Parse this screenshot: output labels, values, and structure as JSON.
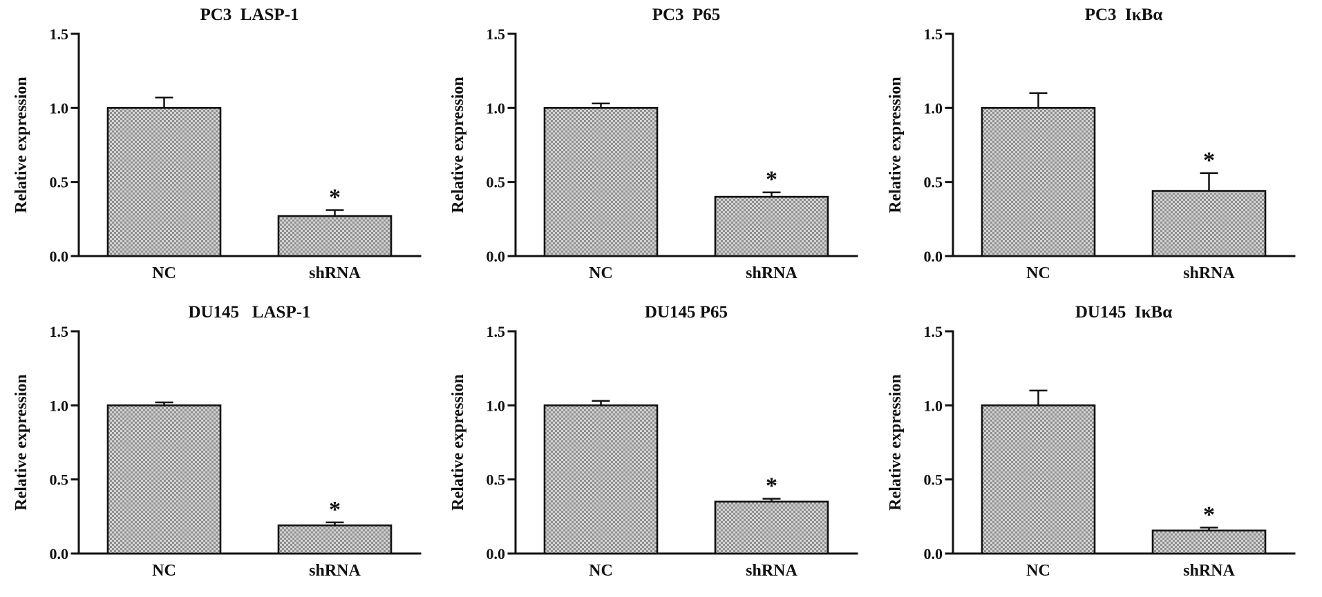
{
  "page": {
    "background": "#ffffff"
  },
  "colors": {
    "stroke": "#111111",
    "bar_fill_light": "#d4d4d4",
    "bar_fill_dark": "#8f8f8f"
  },
  "chart_data": [
    {
      "id": "pc3-lasp1",
      "type": "bar",
      "title": "PC3  LASP-1",
      "ylabel": "Relative expression",
      "xlabel": "",
      "categories": [
        "NC",
        "shRNA"
      ],
      "values": [
        1.0,
        0.27
      ],
      "errors": [
        0.07,
        0.04
      ],
      "significance": [
        "",
        "*"
      ],
      "ylim": [
        0,
        1.5
      ],
      "yticks": [
        "0.0",
        "0.5",
        "1.0",
        "1.5"
      ],
      "grid": false,
      "legend": "none"
    },
    {
      "id": "pc3-p65",
      "type": "bar",
      "title": "PC3  P65",
      "ylabel": "Relative expression",
      "xlabel": "",
      "categories": [
        "NC",
        "shRNA"
      ],
      "values": [
        1.0,
        0.4
      ],
      "errors": [
        0.03,
        0.03
      ],
      "significance": [
        "",
        "*"
      ],
      "ylim": [
        0,
        1.5
      ],
      "yticks": [
        "0.0",
        "0.5",
        "1.0",
        "1.5"
      ],
      "grid": false,
      "legend": "none"
    },
    {
      "id": "pc3-ikba",
      "type": "bar",
      "title": "PC3  IκBα",
      "ylabel": "Relative expression",
      "xlabel": "",
      "categories": [
        "NC",
        "shRNA"
      ],
      "values": [
        1.0,
        0.44
      ],
      "errors": [
        0.1,
        0.12
      ],
      "significance": [
        "",
        "*"
      ],
      "ylim": [
        0,
        1.5
      ],
      "yticks": [
        "0.0",
        "0.5",
        "1.0",
        "1.5"
      ],
      "grid": false,
      "legend": "none"
    },
    {
      "id": "du145-lasp1",
      "type": "bar",
      "title": "DU145   LASP-1",
      "ylabel": "Relative expression",
      "xlabel": "",
      "categories": [
        "NC",
        "shRNA"
      ],
      "values": [
        1.0,
        0.19
      ],
      "errors": [
        0.02,
        0.02
      ],
      "significance": [
        "",
        "*"
      ],
      "ylim": [
        0,
        1.5
      ],
      "yticks": [
        "0.0",
        "0.5",
        "1.0",
        "1.5"
      ],
      "grid": false,
      "legend": "none"
    },
    {
      "id": "du145-p65",
      "type": "bar",
      "title": "DU145 P65",
      "ylabel": "Relative expression",
      "xlabel": "",
      "categories": [
        "NC",
        "shRNA"
      ],
      "values": [
        1.0,
        0.35
      ],
      "errors": [
        0.03,
        0.02
      ],
      "significance": [
        "",
        "*"
      ],
      "ylim": [
        0,
        1.5
      ],
      "yticks": [
        "0.0",
        "0.5",
        "1.0",
        "1.5"
      ],
      "grid": false,
      "legend": "none"
    },
    {
      "id": "du145-ikba",
      "type": "bar",
      "title": "DU145  IκBα",
      "ylabel": "Relative expression",
      "xlabel": "",
      "categories": [
        "NC",
        "shRNA"
      ],
      "values": [
        1.0,
        0.155
      ],
      "errors": [
        0.1,
        0.02
      ],
      "significance": [
        "",
        "*"
      ],
      "ylim": [
        0,
        1.5
      ],
      "yticks": [
        "0.0",
        "0.5",
        "1.0",
        "1.5"
      ],
      "grid": false,
      "legend": "none"
    }
  ]
}
